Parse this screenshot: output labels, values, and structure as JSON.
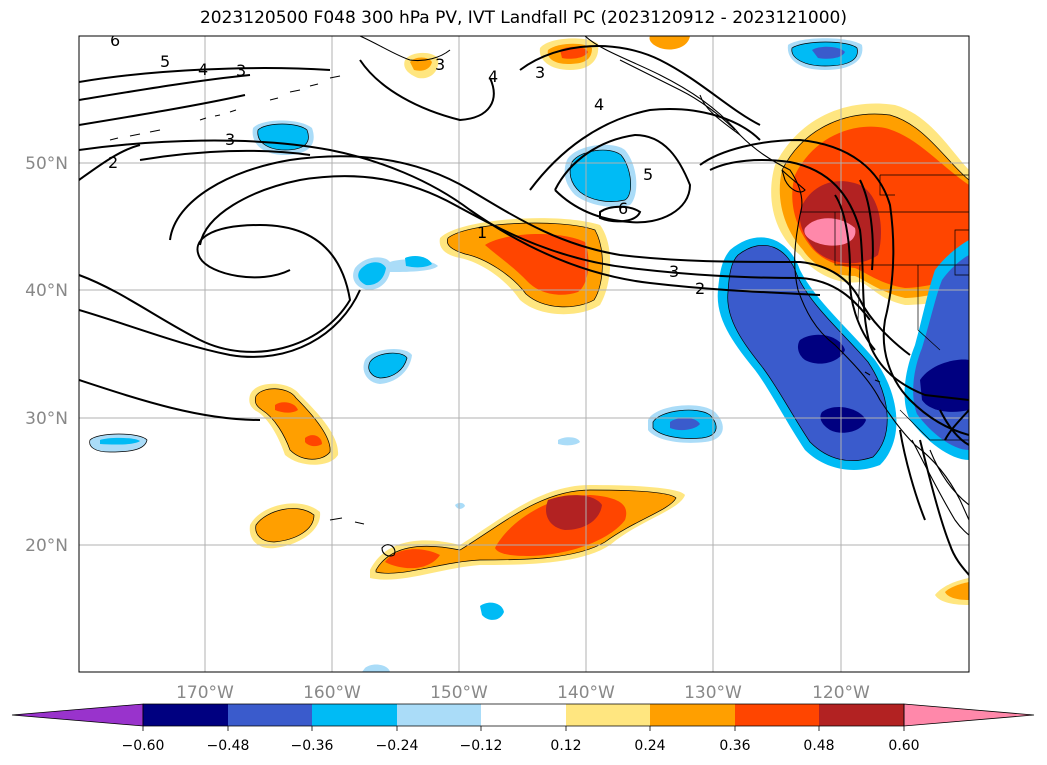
{
  "title": "2023120500 F048 300 hPa PV, IVT Landfall PC (2023120912 - 2023121000)",
  "latitude_labels": [
    "50°N",
    "40°N",
    "30°N",
    "20°N"
  ],
  "longitude_labels": [
    "170°W",
    "160°W",
    "150°W",
    "140°W",
    "130°W",
    "120°W"
  ],
  "colorbar": {
    "ticks": [
      "−0.60",
      "−0.48",
      "−0.36",
      "−0.24",
      "−0.12",
      "0.12",
      "0.24",
      "0.36",
      "0.48",
      "0.60"
    ],
    "colors": [
      "#9933cc",
      "#000080",
      "#3a5bcc",
      "#00bbf5",
      "#aadcf8",
      "#ffffff",
      "#ffe680",
      "#ff9f00",
      "#ff4500",
      "#b22222",
      "#ff88aa"
    ]
  },
  "contour_labels": [
    "6",
    "5",
    "4",
    "3",
    "3",
    "2",
    "3",
    "4",
    "3",
    "4",
    "5",
    "6",
    "1",
    "3",
    "2"
  ]
}
